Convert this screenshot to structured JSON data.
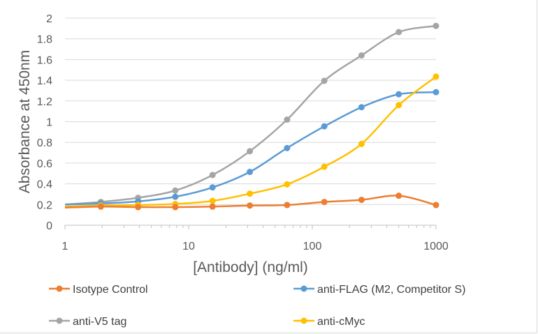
{
  "chart_data": {
    "type": "line",
    "title": "",
    "xlabel": "[Antibody] (ng/ml)",
    "ylabel": "Absorbance at 450nm",
    "x_scale": "log",
    "xlim": [
      1,
      1000
    ],
    "ylim": [
      0,
      2
    ],
    "x_tick_labels": [
      "1",
      "10",
      "100",
      "1000"
    ],
    "y_tick_labels": [
      "0",
      "0.2",
      "0.4",
      "0.6",
      "0.8",
      "1",
      "1.2",
      "1.4",
      "1.6",
      "1.8",
      "2"
    ],
    "grid": "horizontal",
    "legend_position": "bottom",
    "x": [
      1,
      1.95,
      3.9,
      7.8,
      15.6,
      31.25,
      62.5,
      125,
      250,
      500,
      1000
    ],
    "series": [
      {
        "name": "Isotype Control",
        "color": "#ED7D31",
        "values": [
          0.17,
          0.18,
          0.175,
          0.175,
          0.18,
          0.19,
          0.195,
          0.225,
          0.245,
          0.285,
          0.195
        ]
      },
      {
        "name": "anti-FLAG (M2, Competitor S)",
        "color": "#5B9BD5",
        "values": [
          0.2,
          0.21,
          0.23,
          0.275,
          0.365,
          0.515,
          0.745,
          0.955,
          1.14,
          1.265,
          1.285
        ]
      },
      {
        "name": "anti-V5 tag",
        "color": "#A5A5A5",
        "values": [
          0.2,
          0.225,
          0.265,
          0.335,
          0.485,
          0.715,
          1.02,
          1.395,
          1.64,
          1.865,
          1.925
        ]
      },
      {
        "name": "anti-cMyc",
        "color": "#FFC000",
        "values": [
          0.18,
          0.19,
          0.195,
          0.205,
          0.235,
          0.305,
          0.395,
          0.565,
          0.785,
          1.16,
          1.435
        ]
      }
    ]
  }
}
